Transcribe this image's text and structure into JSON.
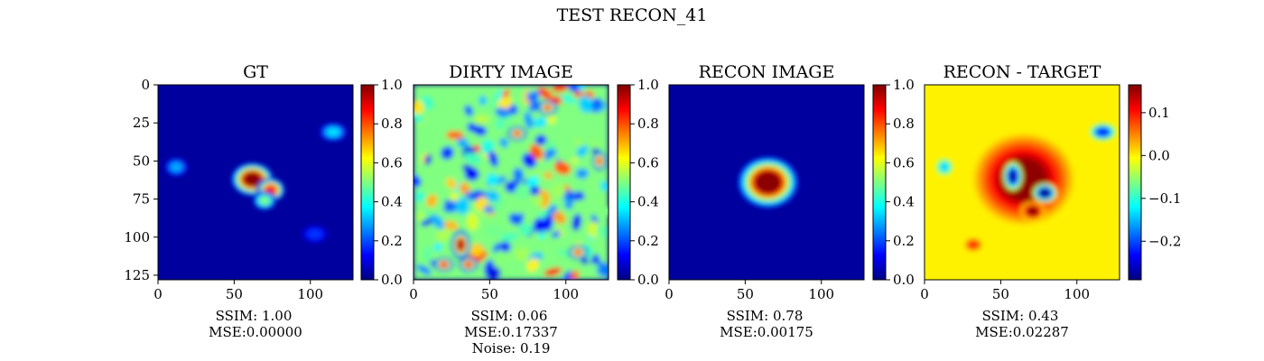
{
  "figure": {
    "suptitle": "TEST RECON_41"
  },
  "chart_data": [
    {
      "type": "heatmap",
      "title": "GT",
      "x_ticks": [
        0,
        50,
        100
      ],
      "y_ticks": [
        0,
        25,
        50,
        75,
        100,
        125
      ],
      "xlim": [
        0,
        128
      ],
      "ylim": [
        128,
        0
      ],
      "colorbar": {
        "range": [
          0.0,
          1.0
        ],
        "ticks": [
          "0.0",
          "0.2",
          "0.4",
          "0.6",
          "0.8",
          "1.0"
        ],
        "colormap": "jet"
      },
      "caption": [
        "SSIM: 1.00",
        "MSE:0.00000"
      ],
      "features": [
        {
          "kind": "blob",
          "x": 62,
          "y": 62,
          "value": 1.0,
          "rx": 9,
          "ry": 7
        },
        {
          "kind": "blob",
          "x": 74,
          "y": 69,
          "value": 0.85,
          "rx": 6,
          "ry": 5
        },
        {
          "kind": "blob",
          "x": 70,
          "y": 76,
          "value": 0.5,
          "rx": 5,
          "ry": 4
        },
        {
          "kind": "blob",
          "x": 115,
          "y": 31,
          "value": 0.35,
          "rx": 6,
          "ry": 4
        },
        {
          "kind": "blob",
          "x": 12,
          "y": 54,
          "value": 0.3,
          "rx": 5,
          "ry": 4
        },
        {
          "kind": "blob",
          "x": 103,
          "y": 98,
          "value": 0.18,
          "rx": 6,
          "ry": 4
        }
      ]
    },
    {
      "type": "heatmap",
      "title": "DIRTY IMAGE",
      "x_ticks": [
        0,
        50,
        100
      ],
      "xlim": [
        0,
        128
      ],
      "ylim": [
        128,
        0
      ],
      "colorbar": {
        "range": [
          0.0,
          1.0
        ],
        "ticks": [
          "0.0",
          "0.2",
          "0.4",
          "0.6",
          "0.8",
          "1.0"
        ],
        "colormap": "jet"
      },
      "caption": [
        "SSIM: 0.06",
        "MSE:0.17337",
        "Noise: 0.19"
      ],
      "features": [
        {
          "kind": "noise",
          "value": 0.5
        },
        {
          "kind": "blob",
          "x": 31,
          "y": 105,
          "value": 0.95,
          "rx": 4,
          "ry": 6
        },
        {
          "kind": "blob",
          "x": 20,
          "y": 118,
          "value": 0.85,
          "rx": 4,
          "ry": 3
        },
        {
          "kind": "blob",
          "x": 36,
          "y": 118,
          "value": 0.85,
          "rx": 4,
          "ry": 3
        },
        {
          "kind": "blob",
          "x": 68,
          "y": 32,
          "value": 0.8,
          "rx": 4,
          "ry": 3
        },
        {
          "kind": "blob",
          "x": 88,
          "y": 15,
          "value": 0.8,
          "rx": 4,
          "ry": 3
        },
        {
          "kind": "blob",
          "x": 108,
          "y": 110,
          "value": 0.8,
          "rx": 4,
          "ry": 3
        },
        {
          "kind": "blob",
          "x": 122,
          "y": 50,
          "value": 0.8,
          "rx": 3,
          "ry": 4
        }
      ]
    },
    {
      "type": "heatmap",
      "title": "RECON IMAGE",
      "x_ticks": [
        0,
        50,
        100
      ],
      "xlim": [
        0,
        128
      ],
      "ylim": [
        128,
        0
      ],
      "colorbar": {
        "range": [
          0.0,
          1.0
        ],
        "ticks": [
          "0.0",
          "0.2",
          "0.4",
          "0.6",
          "0.8",
          "1.0"
        ],
        "colormap": "jet"
      },
      "caption": [
        "SSIM: 0.78",
        "MSE:0.00175"
      ],
      "features": [
        {
          "kind": "blob",
          "x": 65,
          "y": 64,
          "value": 1.0,
          "rx": 13,
          "ry": 11
        }
      ]
    },
    {
      "type": "heatmap",
      "title": "RECON - TARGET",
      "x_ticks": [
        0,
        50,
        100
      ],
      "xlim": [
        0,
        128
      ],
      "ylim": [
        128,
        0
      ],
      "colorbar": {
        "range": [
          -0.29,
          0.165
        ],
        "ticks": [
          "0.1",
          "0.0",
          "−0.1",
          "−0.2"
        ],
        "tick_values": [
          0.1,
          0.0,
          -0.1,
          -0.2
        ],
        "colormap": "jet"
      },
      "caption": [
        "SSIM: 0.43",
        "MSE:0.02287"
      ],
      "background_value": 0.0,
      "features": [
        {
          "kind": "blob",
          "x": 65,
          "y": 62,
          "value": 0.16,
          "rx": 22,
          "ry": 20
        },
        {
          "kind": "blob",
          "x": 58,
          "y": 60,
          "value": -0.27,
          "rx": 4,
          "ry": 6
        },
        {
          "kind": "blob",
          "x": 79,
          "y": 71,
          "value": -0.29,
          "rx": 5,
          "ry": 4
        },
        {
          "kind": "blob",
          "x": 71,
          "y": 83,
          "value": 0.16,
          "rx": 5,
          "ry": 4
        },
        {
          "kind": "blob",
          "x": 117,
          "y": 31,
          "value": -0.22,
          "rx": 6,
          "ry": 4
        },
        {
          "kind": "blob",
          "x": 13,
          "y": 54,
          "value": -0.14,
          "rx": 4,
          "ry": 4
        },
        {
          "kind": "blob",
          "x": 32,
          "y": 105,
          "value": 0.1,
          "rx": 4,
          "ry": 3
        }
      ]
    }
  ]
}
